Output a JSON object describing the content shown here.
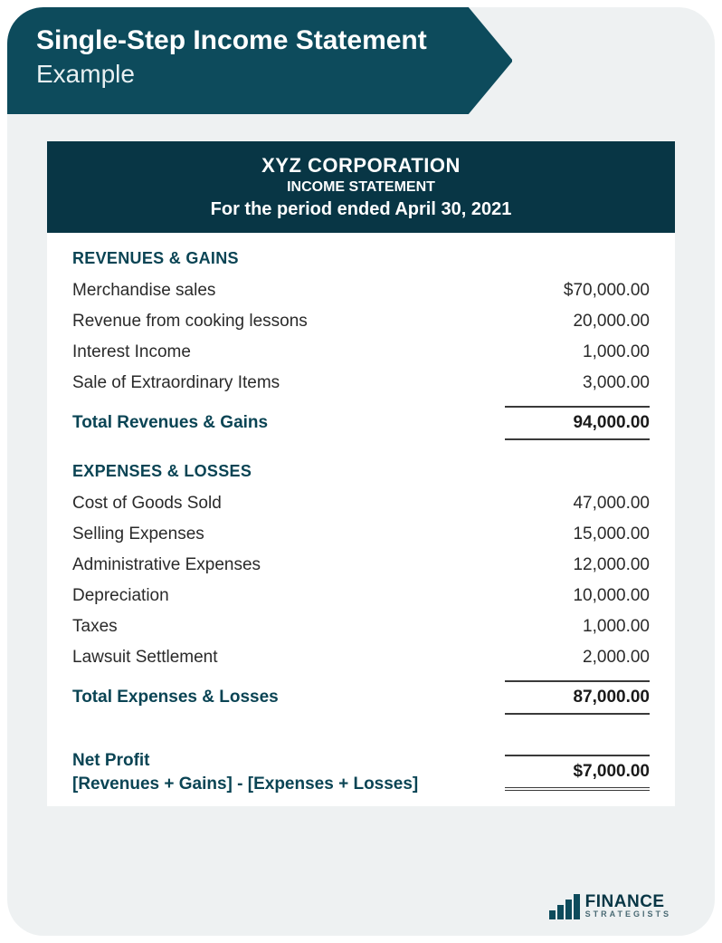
{
  "banner": {
    "title": "Single-Step Income Statement",
    "subtitle": "Example",
    "bg_color": "#0d4b5c",
    "title_color": "#ffffff",
    "subtitle_color": "#e8f0f2",
    "title_fontsize": 30,
    "subtitle_fontsize": 28
  },
  "card_bg_color": "#eef1f2",
  "statement": {
    "header": {
      "company": "XYZ CORPORATION",
      "doc_type": "INCOME STATEMENT",
      "period": "For the period ended April 30, 2021",
      "bg_color": "#083645",
      "text_color": "#ffffff"
    },
    "section_title_color": "#0a4454",
    "row_text_color": "#2a2a2a",
    "total_value_color": "#1a1a1a",
    "border_color": "#3a3a3a",
    "body_fontsize": 19,
    "revenues": {
      "title": "REVENUES & GAINS",
      "items": [
        {
          "label": "Merchandise sales",
          "value": "$70,000.00",
          "numeric": 70000.0
        },
        {
          "label": "Revenue from cooking lessons",
          "value": "20,000.00",
          "numeric": 20000.0
        },
        {
          "label": "Interest Income",
          "value": "1,000.00",
          "numeric": 1000.0
        },
        {
          "label": "Sale of Extraordinary Items",
          "value": "3,000.00",
          "numeric": 3000.0
        }
      ],
      "total_label": "Total Revenues & Gains",
      "total_value": "94,000.00",
      "total_numeric": 94000.0
    },
    "expenses": {
      "title": "EXPENSES & LOSSES",
      "items": [
        {
          "label": "Cost of Goods Sold",
          "value": "47,000.00",
          "numeric": 47000.0
        },
        {
          "label": "Selling Expenses",
          "value": "15,000.00",
          "numeric": 15000.0
        },
        {
          "label": "Administrative Expenses",
          "value": "12,000.00",
          "numeric": 12000.0
        },
        {
          "label": "Depreciation",
          "value": "10,000.00",
          "numeric": 10000.0
        },
        {
          "label": "Taxes",
          "value": "1,000.00",
          "numeric": 1000.0
        },
        {
          "label": "Lawsuit Settlement",
          "value": "2,000.00",
          "numeric": 2000.0
        }
      ],
      "total_label": "Total Expenses & Losses",
      "total_value": "87,000.00",
      "total_numeric": 87000.0
    },
    "net": {
      "label_line1": "Net Profit",
      "label_line2": " [Revenues + Gains] - [Expenses + Losses]",
      "value": "$7,000.00",
      "numeric": 7000.0
    }
  },
  "brand": {
    "line1": "FINANCE",
    "line2": "STRATEGISTS",
    "primary_color": "#083645",
    "secondary_color": "#4a6a74"
  }
}
